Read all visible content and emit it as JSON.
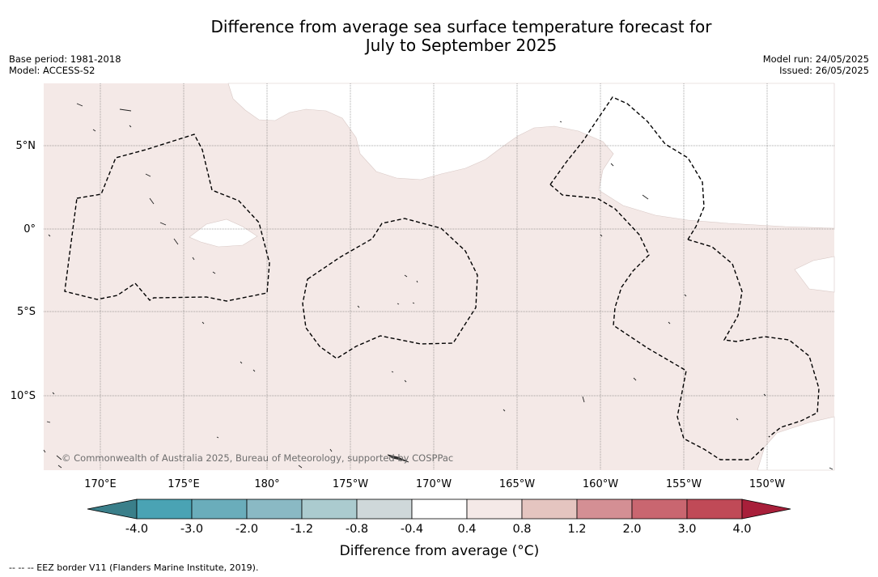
{
  "header": {
    "title_line1": "Difference from average sea surface temperature forecast for",
    "title_line2": "July to September 2025",
    "base_period": "Base period: 1981-2018",
    "model": "Model: ACCESS-S2",
    "model_run": "Model run: 24/05/2025",
    "issued": "Issued: 26/05/2025"
  },
  "map": {
    "lat_labels": [
      "5°N",
      "0°",
      "5°S",
      "10°S"
    ],
    "lon_labels": [
      "170°E",
      "175°E",
      "180°",
      "175°W",
      "170°W",
      "165°W",
      "160°W",
      "155°W",
      "150°W"
    ],
    "copyright": "© Commonwealth of Australia 2025, Bureau of Meteorology, supported by COSPPac",
    "colors": {
      "ocean_anomaly_0_4_to_0_8": "#f4e9e7",
      "neutral": "#ffffff",
      "eez_border": "#000000"
    }
  },
  "colorbar": {
    "title": "Difference from average (°C)",
    "tick_labels": [
      "-4.0",
      "-3.0",
      "-2.0",
      "-1.2",
      "-0.8",
      "-0.4",
      "0.4",
      "0.8",
      "1.2",
      "2.0",
      "3.0",
      "4.0"
    ],
    "colors": [
      "#3a7f8a",
      "#4aa3b4",
      "#6aadbb",
      "#8ab9c4",
      "#abcbcf",
      "#cfd8da",
      "#ffffff",
      "#f4e9e7",
      "#e5c5c0",
      "#d48f94",
      "#c96670",
      "#c04a57",
      "#a81f3a"
    ]
  },
  "footer": {
    "legend_text": "--  --  -- EEZ border V11 (Flanders Marine Institute, 2019)."
  }
}
